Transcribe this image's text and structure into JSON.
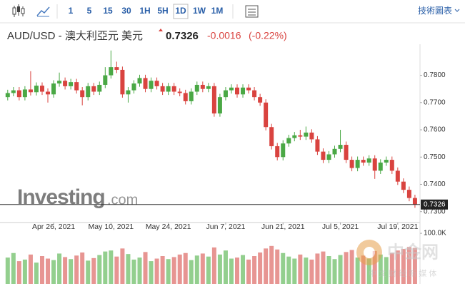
{
  "toolbar": {
    "intervals": [
      "1",
      "5",
      "15",
      "30",
      "1H",
      "5H",
      "1D",
      "1W",
      "1M"
    ],
    "selected": 6,
    "link": "技術圖表"
  },
  "header": {
    "symbol": "AUD/USD - 澳大利亞元 美元",
    "price": "0.7326",
    "change": "-0.0016",
    "change_pct": "(-0.22%)"
  },
  "watermark": {
    "brand": "Investing",
    "suffix": ".com",
    "logo": "中金网",
    "tagline": "中 文 财 经 新 媒 体"
  },
  "chart_data": {
    "type": "candlestick",
    "categories": [
      null,
      null,
      null,
      null,
      null,
      null,
      null,
      null,
      "Apr 26, 2021",
      null,
      null,
      null,
      null,
      null,
      null,
      null,
      null,
      null,
      "May 10, 2021",
      null,
      null,
      null,
      null,
      null,
      null,
      null,
      null,
      null,
      "May 24, 2021",
      null,
      null,
      null,
      null,
      null,
      null,
      null,
      null,
      null,
      "Jun 7, 2021",
      null,
      null,
      null,
      null,
      null,
      null,
      null,
      null,
      null,
      "Jun 21, 2021",
      null,
      null,
      null,
      null,
      null,
      null,
      null,
      null,
      null,
      "Jul 5, 2021",
      null,
      null,
      null,
      null,
      null,
      null,
      null,
      null,
      null,
      "Jul 19, 2021",
      null,
      null,
      null
    ],
    "open": [
      0.772,
      0.7735,
      0.7745,
      0.772,
      0.7748,
      0.7738,
      0.7762,
      0.774,
      0.773,
      0.777,
      0.778,
      0.776,
      0.7775,
      0.7745,
      0.772,
      0.776,
      0.774,
      0.7765,
      0.78,
      0.783,
      0.782,
      0.773,
      0.7745,
      0.777,
      0.779,
      0.775,
      0.778,
      0.776,
      0.774,
      0.776,
      0.774,
      0.7735,
      0.7705,
      0.774,
      0.7765,
      0.775,
      0.776,
      0.766,
      0.772,
      0.7745,
      0.7755,
      0.773,
      0.7755,
      0.7745,
      0.772,
      0.77,
      0.761,
      0.754,
      0.75,
      0.755,
      0.757,
      0.758,
      0.7575,
      0.759,
      0.7565,
      0.752,
      0.749,
      0.751,
      0.753,
      0.7545,
      0.749,
      0.746,
      0.749,
      0.748,
      0.7495,
      0.745,
      0.748,
      0.749,
      0.745,
      0.741,
      0.738,
      0.735
    ],
    "high": [
      0.7747,
      0.7757,
      0.7757,
      0.776,
      0.7815,
      0.7774,
      0.7774,
      0.7752,
      0.7782,
      0.781,
      0.7792,
      0.7787,
      0.7787,
      0.7757,
      0.7772,
      0.7772,
      0.7777,
      0.783,
      0.7891,
      0.785,
      0.7832,
      0.7757,
      0.7782,
      0.7802,
      0.7802,
      0.7792,
      0.7792,
      0.7772,
      0.7772,
      0.7772,
      0.7752,
      0.7747,
      0.7752,
      0.7777,
      0.7777,
      0.7772,
      0.7772,
      0.7732,
      0.7757,
      0.7767,
      0.7767,
      0.7767,
      0.7767,
      0.7757,
      0.7732,
      0.7712,
      0.7622,
      0.7552,
      0.7562,
      0.7582,
      0.7592,
      0.76,
      0.7612,
      0.7602,
      0.7577,
      0.7532,
      0.7522,
      0.7542,
      0.76,
      0.7557,
      0.7502,
      0.7502,
      0.7502,
      0.7507,
      0.7507,
      0.7492,
      0.7502,
      0.7502,
      0.7462,
      0.7422,
      0.7392,
      0.7362
    ],
    "low": [
      0.7708,
      0.7723,
      0.7708,
      0.7708,
      0.7726,
      0.7726,
      0.7728,
      0.77,
      0.7718,
      0.7758,
      0.7748,
      0.7748,
      0.7733,
      0.769,
      0.7708,
      0.7728,
      0.7728,
      0.7753,
      0.7788,
      0.7808,
      0.7718,
      0.77,
      0.7733,
      0.7758,
      0.7738,
      0.7738,
      0.7748,
      0.7728,
      0.7728,
      0.7728,
      0.7723,
      0.7693,
      0.7693,
      0.7728,
      0.7738,
      0.7738,
      0.7648,
      0.7648,
      0.7708,
      0.7733,
      0.7718,
      0.7718,
      0.7733,
      0.7708,
      0.7688,
      0.7598,
      0.7528,
      0.7488,
      0.7488,
      0.7538,
      0.7558,
      0.7563,
      0.7563,
      0.7553,
      0.7508,
      0.7478,
      0.7478,
      0.7498,
      0.7518,
      0.7478,
      0.7448,
      0.7448,
      0.7468,
      0.7468,
      0.742,
      0.7438,
      0.7468,
      0.7438,
      0.7398,
      0.7368,
      0.7338,
      0.7314
    ],
    "close": [
      0.7735,
      0.7745,
      0.772,
      0.7748,
      0.7738,
      0.7762,
      0.774,
      0.773,
      0.777,
      0.778,
      0.776,
      0.7775,
      0.7745,
      0.772,
      0.776,
      0.774,
      0.7765,
      0.78,
      0.783,
      0.782,
      0.773,
      0.7745,
      0.777,
      0.779,
      0.775,
      0.778,
      0.776,
      0.774,
      0.776,
      0.774,
      0.7735,
      0.7705,
      0.774,
      0.7765,
      0.775,
      0.776,
      0.766,
      0.772,
      0.7745,
      0.7755,
      0.773,
      0.7755,
      0.7745,
      0.772,
      0.77,
      0.761,
      0.754,
      0.75,
      0.755,
      0.757,
      0.758,
      0.7575,
      0.759,
      0.7565,
      0.752,
      0.749,
      0.751,
      0.753,
      0.7545,
      0.749,
      0.746,
      0.749,
      0.748,
      0.7495,
      0.745,
      0.748,
      0.749,
      0.745,
      0.741,
      0.738,
      0.735,
      0.7326
    ],
    "volume": [
      52000,
      61000,
      45000,
      48000,
      58000,
      42000,
      55000,
      50000,
      47000,
      60000,
      53000,
      49000,
      56000,
      62000,
      46000,
      51000,
      57000,
      64000,
      66000,
      54000,
      70000,
      59000,
      48000,
      52000,
      63000,
      45000,
      50000,
      55000,
      49000,
      53000,
      58000,
      61000,
      47000,
      56000,
      60000,
      54000,
      72000,
      58000,
      66000,
      50000,
      52000,
      57000,
      48000,
      55000,
      62000,
      70000,
      75000,
      68000,
      61000,
      54000,
      50000,
      58000,
      52000,
      48000,
      60000,
      64000,
      55000,
      49000,
      57000,
      63000,
      67000,
      52000,
      56000,
      50000,
      65000,
      58000,
      53000,
      61000,
      66000,
      69000,
      73000,
      71000
    ],
    "up_color": "#4aa845",
    "down_color": "#d9433f",
    "volume_up_color": "#93cf8e",
    "volume_down_color": "#e79592",
    "ylim": [
      0.726,
      0.788
    ],
    "yticks": [
      {
        "value": 0.73,
        "label": "0.7300"
      },
      {
        "value": 0.74,
        "label": "0.7400"
      },
      {
        "value": 0.75,
        "label": "0.7500"
      },
      {
        "value": 0.76,
        "label": "0.7600"
      },
      {
        "value": 0.77,
        "label": "0.7700"
      },
      {
        "value": 0.78,
        "label": "0.7800"
      }
    ],
    "volume_ylim": [
      0,
      110000
    ],
    "volume_ticks": [
      {
        "value": 100000,
        "label": "100.0K"
      }
    ]
  }
}
